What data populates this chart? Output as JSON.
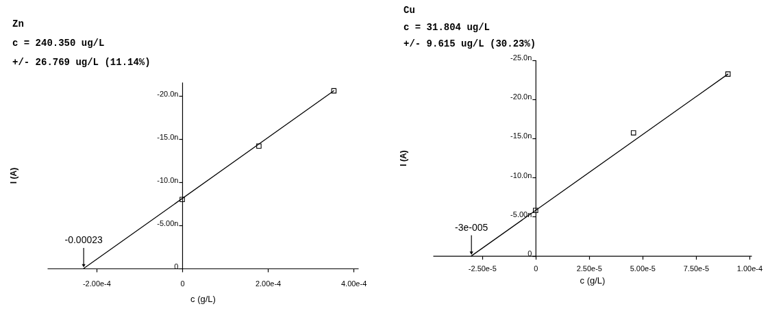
{
  "chart_data": [
    {
      "type": "scatter",
      "title": "Zn",
      "xlabel": "c (g/L)",
      "ylabel": "I (A)",
      "annotations": [
        "c = 240.350 ug/L",
        "+/- 26.769 ug/L (11.14%)",
        {
          "text": "-0.00023",
          "x": -0.00023,
          "y": 0
        }
      ],
      "series": [
        {
          "type": "line",
          "x": [
            -0.00023,
            0.000354
          ],
          "values": [
            0,
            -20.6
          ],
          "color": "#000000",
          "marker": "none"
        },
        {
          "x": [
            0,
            0.000179,
            0.000354
          ],
          "values": [
            -8.0,
            -14.2,
            -20.6
          ],
          "color": "#000000"
        }
      ],
      "xlim": [
        -0.000315,
        0.000411
      ],
      "xticks": [
        {
          "value": -0.0002,
          "label": "-2.00e-4"
        },
        0,
        {
          "value": 0.0002,
          "label": "2.00e-4"
        },
        {
          "value": 0.0004,
          "label": "4.00e-4"
        }
      ],
      "ylim": [
        0,
        -21.6
      ],
      "yticks": [
        0,
        {
          "value": -5,
          "label": "-5.00n"
        },
        {
          "value": -10,
          "label": "-10.0n"
        },
        {
          "value": -15,
          "label": "-15.0n"
        },
        {
          "value": -20,
          "label": "-20.0n"
        }
      ],
      "grid": false,
      "marker": "square",
      "line_style": "solid"
    },
    {
      "type": "scatter",
      "title": "Cu",
      "xlabel": "c (g/L)",
      "ylabel": "I (A)",
      "annotations": [
        "c = 31.804 ug/L",
        "+/- 9.615 ug/L (30.23%)",
        {
          "text": "-3e-005",
          "x": -3e-05,
          "y": 0
        }
      ],
      "series": [
        {
          "type": "line",
          "x": [
            -3e-05,
            9e-05
          ],
          "values": [
            0,
            -23.2
          ],
          "color": "#000000",
          "marker": "none"
        },
        {
          "x": [
            0,
            4.58e-05,
            9e-05
          ],
          "values": [
            -5.8,
            -15.7,
            -23.2
          ],
          "color": "#000000"
        }
      ],
      "xlim": [
        -4.8e-05,
        0.000101
      ],
      "xticks": [
        {
          "value": -2.5e-05,
          "label": "-2.50e-5"
        },
        0,
        {
          "value": 2.5e-05,
          "label": "2.50e-5"
        },
        {
          "value": 5e-05,
          "label": "5.00e-5"
        },
        {
          "value": 7.5e-05,
          "label": "7.50e-5"
        },
        {
          "value": 0.0001,
          "label": "1.00e-4"
        }
      ],
      "ylim": [
        0,
        -25
      ],
      "yticks": [
        0,
        {
          "value": -5,
          "label": "-5.00n"
        },
        {
          "value": -10,
          "label": "-10.0n"
        },
        {
          "value": -15,
          "label": "-15.0n"
        },
        {
          "value": -20,
          "label": "-20.0n"
        },
        {
          "value": -25,
          "label": "-25.0n"
        }
      ],
      "grid": false,
      "marker": "square",
      "line_style": "solid"
    }
  ]
}
